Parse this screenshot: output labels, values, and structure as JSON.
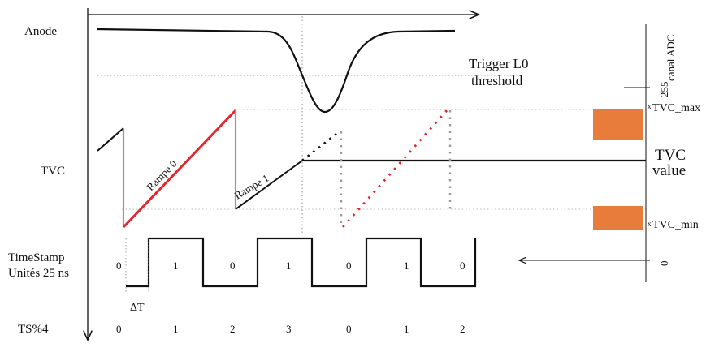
{
  "labels": {
    "anode": "Anode",
    "tvc": "TVC",
    "timestamp_line1": "TimeStamp",
    "timestamp_line2": "Unités 25 ns",
    "ts_mod4": "TS%4",
    "trigger_line1": "Trigger L0",
    "trigger_line2": "threshold",
    "rampe0": "Rampe 0",
    "rampe1": "Rampe 1",
    "tvc_value_line1": "TVC",
    "tvc_value_line2": "value",
    "tvc_max": "TVC_max",
    "tvc_min": "TVC_min",
    "delta_t": "ΔT",
    "canal_adc": "canal ADC",
    "adc_max": "255",
    "adc_min": "0"
  },
  "timestamp_values": [
    "0",
    "1",
    "0",
    "1",
    "0",
    "1",
    "0"
  ],
  "ts_mod4_values": [
    "0",
    "1",
    "2",
    "3",
    "0",
    "1",
    "2"
  ],
  "colors": {
    "ramp0": "#e0282e",
    "ramp_dots": "#e0282e",
    "adc_bar": "#e87c3a",
    "line": "#111111",
    "grid": "#999999",
    "gray_line": "#9a9a9a"
  }
}
